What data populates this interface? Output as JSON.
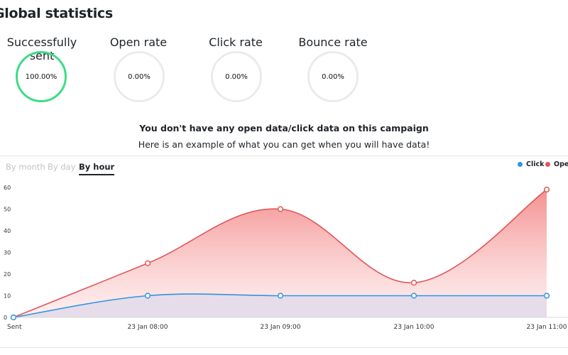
{
  "header": {
    "title": "Global statistics"
  },
  "stats": [
    {
      "label": "Successfully sent",
      "value": "100.00%"
    },
    {
      "label": "Open rate",
      "value": "0.00%"
    },
    {
      "label": "Click rate",
      "value": "0.00%"
    },
    {
      "label": "Bounce rate",
      "value": "0.00%"
    }
  ],
  "notice": {
    "heading": "You don't have any open data/click data on this campaign",
    "sub": "Here is an example of what you can get when you will have data!"
  },
  "tabs": {
    "by_month": "By month",
    "by_day": "By day",
    "by_hour": "By hour",
    "active": "by_hour"
  },
  "legend": [
    {
      "name": "Click",
      "color": "#2f95e0"
    },
    {
      "name": "Open",
      "color": "#e0565b"
    }
  ],
  "colors": {
    "accent_sent": "#3ddc84",
    "open": "#e0565b",
    "click": "#2f95e0"
  },
  "chart_data": {
    "type": "area",
    "x": [
      "Sent",
      "23 Jan 08:00",
      "23 Jan 09:00",
      "23 Jan 10:00",
      "23 Jan 11:00"
    ],
    "series": [
      {
        "name": "Open",
        "values": [
          0,
          25,
          50,
          16,
          59
        ]
      },
      {
        "name": "Click",
        "values": [
          0,
          10,
          10,
          10,
          10
        ]
      }
    ],
    "yticks": [
      0,
      10,
      20,
      30,
      40,
      50,
      60
    ],
    "ylim": [
      0,
      60
    ],
    "grid": false,
    "legend_position": "top-right"
  }
}
